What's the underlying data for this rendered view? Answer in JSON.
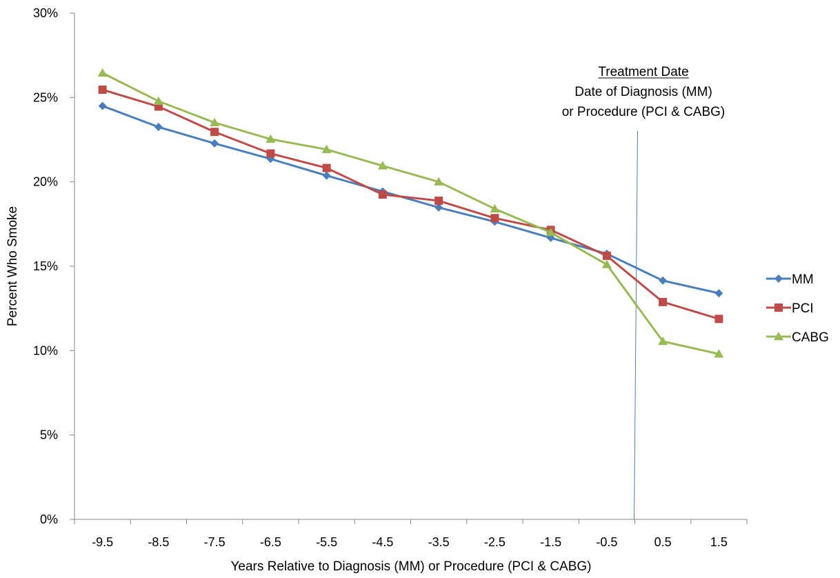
{
  "chart_data": {
    "type": "line",
    "title": "",
    "xlabel": "Years Relative to Diagnosis (MM) or Procedure (PCI & CABG)",
    "ylabel": "Percent Who Smoke",
    "categories": [
      "-9.5",
      "-8.5",
      "-7.5",
      "-6.5",
      "-5.5",
      "-4.5",
      "-3.5",
      "-2.5",
      "-1.5",
      "-0.5",
      "0.5",
      "1.5"
    ],
    "ylim": [
      0,
      0.3
    ],
    "yticks": [
      0,
      0.05,
      0.1,
      0.15,
      0.2,
      0.25,
      0.3
    ],
    "ytick_labels": [
      "0%",
      "5%",
      "10%",
      "15%",
      "20%",
      "25%",
      "30%"
    ],
    "grid": false,
    "legend_position": "right",
    "series": [
      {
        "name": "MM",
        "color": "#4a7ebb",
        "marker": "diamond",
        "values": [
          0.245,
          0.2325,
          0.2228,
          0.2136,
          0.2037,
          0.1943,
          0.1848,
          0.1764,
          0.1668,
          0.1574,
          0.1415,
          0.134
        ]
      },
      {
        "name": "PCI",
        "color": "#be4b48",
        "marker": "square",
        "values": [
          0.2546,
          0.2446,
          0.2296,
          0.2168,
          0.2082,
          0.1925,
          0.1888,
          0.1785,
          0.1715,
          0.1562,
          0.1288,
          0.1188
        ]
      },
      {
        "name": "CABG",
        "color": "#98b954",
        "marker": "triangle",
        "values": [
          0.2645,
          0.2478,
          0.2351,
          0.2253,
          0.2192,
          0.2095,
          0.2,
          0.184,
          0.17,
          0.151,
          0.1055,
          0.098
        ]
      }
    ],
    "annotation": {
      "heading": "Treatment Date",
      "line1": "Date of Diagnosis (MM)",
      "line2": "or Procedure (PCI & CABG)",
      "x_position": 0.0,
      "line_color": "#4a7ebb"
    }
  }
}
